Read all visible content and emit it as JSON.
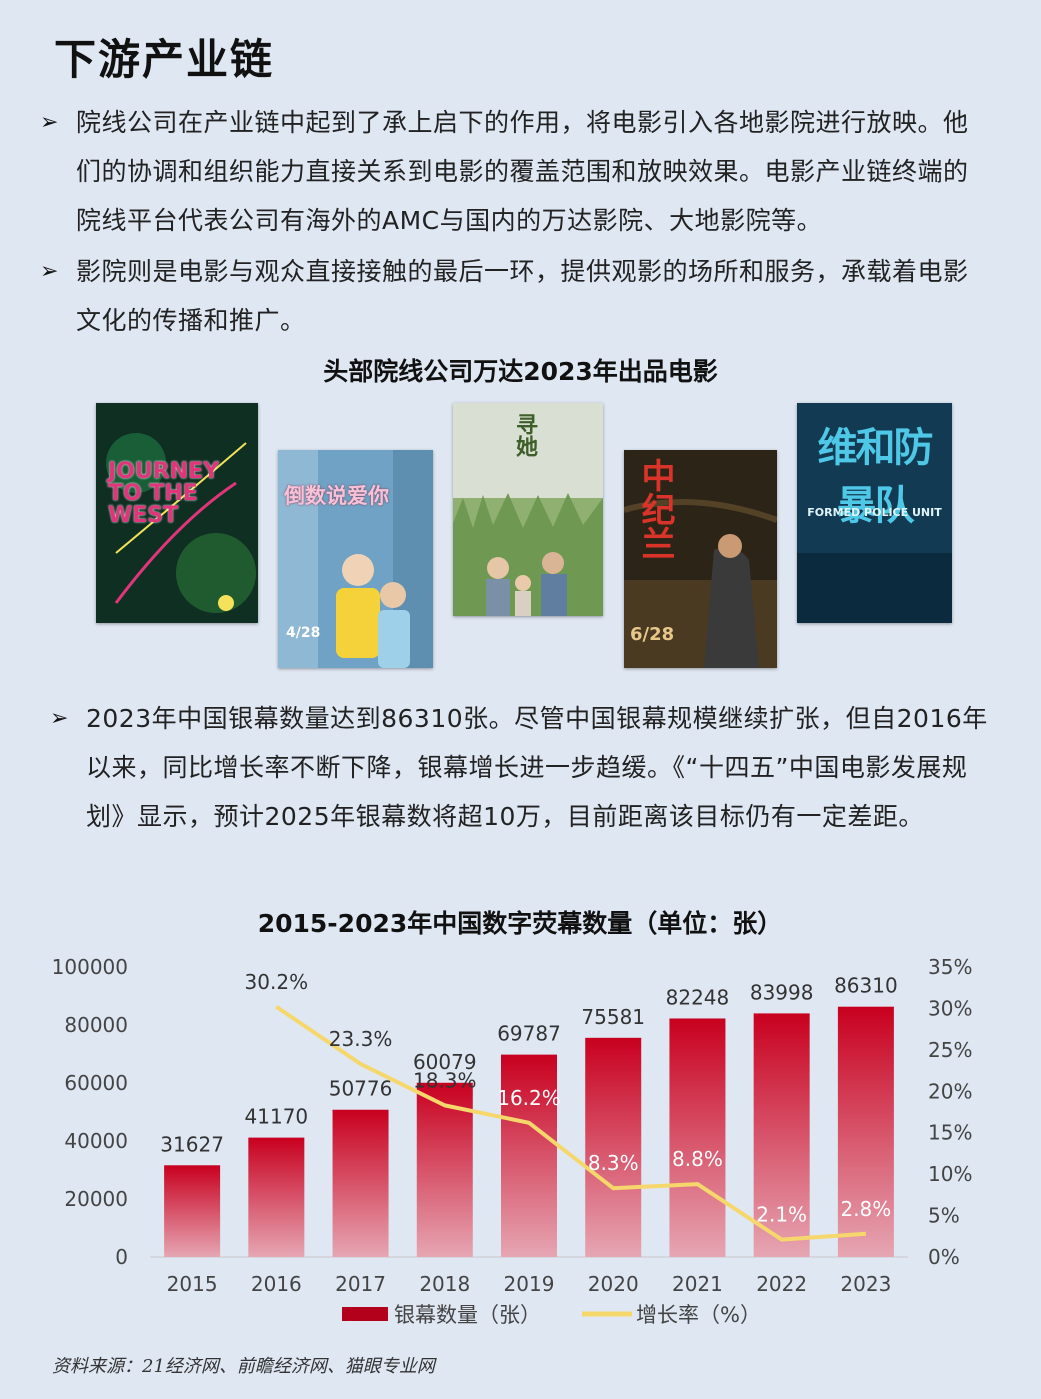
{
  "header": {
    "title": "下游产业链"
  },
  "intro_bullets": [
    {
      "mark": "➢",
      "text": "院线公司在产业链中起到了承上启下的作用，将电影引入各地影院进行放映。他们的协调和组织能力直接关系到电影的覆盖范围和放映效果。电影产业链终端的院线平台代表公司有海外的AMC与国内的万达影院、大地影院等。"
    },
    {
      "mark": "➢",
      "text": "影院则是电影与观众直接接触的最后一环，提供观影的场所和服务，承载着电影文化的传播和推广。"
    }
  ],
  "posters_section": {
    "title": "头部院线公司万达2023年出品电影",
    "posters": [
      {
        "label": "JOURNEY TO THE WEST",
        "bg": "#0f2f22",
        "accent": "#e0357a"
      },
      {
        "label": "倒数说爱你",
        "label2": "4/28",
        "bg": "#6fa2c4",
        "accent": "#f5d23a"
      },
      {
        "label": "寻她",
        "bg": "#a9c48f",
        "accent": "#3e5f2a"
      },
      {
        "label": "中纪兰",
        "label2": "6/28",
        "bg": "#2d2418",
        "accent": "#d9332a"
      },
      {
        "label": "维和防暴队",
        "label2": "FORMED POLICE UNIT",
        "bg": "#123a52",
        "accent": "#4fc7e6"
      }
    ]
  },
  "screen_bullet": {
    "mark": "➢",
    "text": "2023年中国银幕数量达到86310张。尽管中国银幕规模继续扩张，但自2016年以来，同比增长率不断下降，银幕增长进一步趋缓。《“十四五”中国电影发展规划》显示，预计2025年银幕数将超10万，目前距离该目标仍有一定差距。"
  },
  "chart_data": {
    "type": "bar",
    "title": "2015-2023年中国数字荧幕数量（单位：张）",
    "categories": [
      "2015",
      "2016",
      "2017",
      "2018",
      "2019",
      "2020",
      "2021",
      "2022",
      "2023"
    ],
    "series": [
      {
        "name": "银幕数量（张）",
        "type": "bar",
        "axis": "left",
        "color": "#b3001b",
        "values": [
          31627,
          41170,
          50776,
          60079,
          69787,
          75581,
          82248,
          83998,
          86310
        ]
      },
      {
        "name": "增长率（%）",
        "type": "line",
        "axis": "right",
        "color": "#f6d76b",
        "values": [
          null,
          30.2,
          23.3,
          18.3,
          16.2,
          8.3,
          8.8,
          2.1,
          2.8
        ],
        "labels": [
          "",
          "30.2%",
          "23.3%",
          "18.3%",
          "16.2%",
          "8.3%",
          "8.8%",
          "2.1%",
          "2.8%"
        ]
      }
    ],
    "yleft": {
      "min": 0,
      "max": 100000,
      "ticks": [
        "0",
        "20000",
        "40000",
        "60000",
        "80000",
        "100000"
      ]
    },
    "yright": {
      "min": 0,
      "max": 35,
      "ticks": [
        "0%",
        "5%",
        "10%",
        "15%",
        "20%",
        "25%",
        "30%",
        "35%"
      ]
    },
    "legend_position": "bottom",
    "grid": false
  },
  "footer": {
    "source": "资料来源：21经济网、前瞻经济网、猫眼专业网"
  }
}
